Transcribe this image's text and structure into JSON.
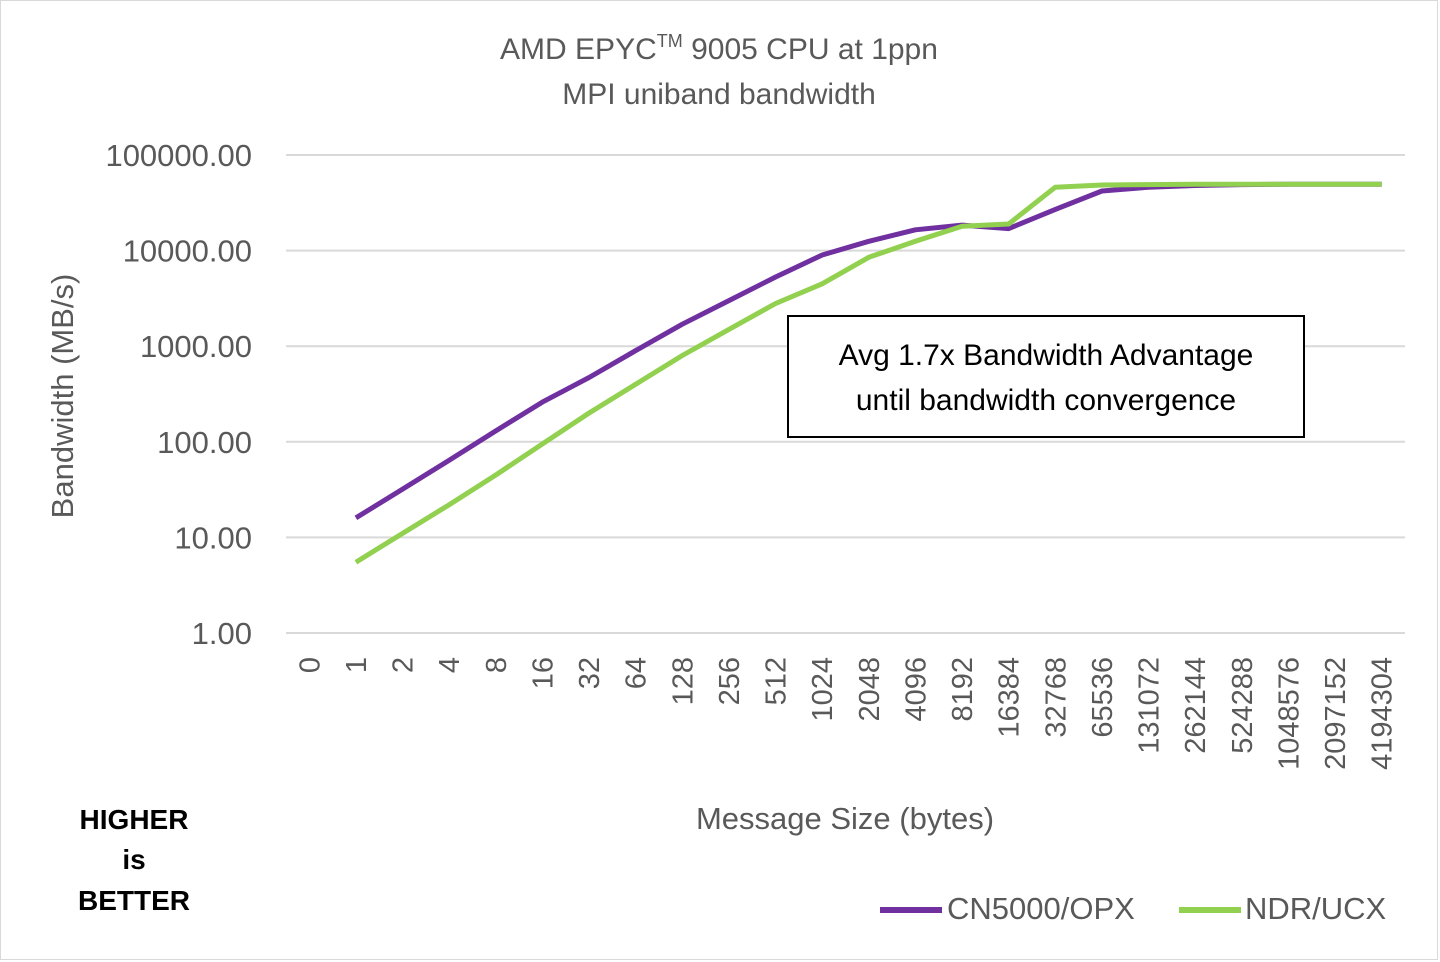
{
  "chart_data": {
    "type": "line",
    "title_main": "AMD EPYC",
    "title_sup": "TM",
    "title_rest": " 9005 CPU at 1ppn",
    "subtitle": "MPI uniband bandwidth",
    "xlabel": "Message Size (bytes)",
    "ylabel": "Bandwidth (MB/s)",
    "y_scale": "log",
    "ylim": [
      1,
      100000
    ],
    "y_ticks": [
      "100000.00",
      "10000.00",
      "1000.00",
      "100.00",
      "10.00",
      "1.00"
    ],
    "categories": [
      "0",
      "1",
      "2",
      "4",
      "8",
      "16",
      "32",
      "64",
      "128",
      "256",
      "512",
      "1024",
      "2048",
      "4096",
      "8192",
      "16384",
      "32768",
      "65536",
      "131072",
      "262144",
      "524288",
      "1048576",
      "2097152",
      "4194304"
    ],
    "series": [
      {
        "name": "CN5000/OPX",
        "color": "#7030a0",
        "values": [
          null,
          16,
          32,
          64,
          130,
          260,
          470,
          900,
          1700,
          3000,
          5300,
          9000,
          12500,
          16500,
          18500,
          17000,
          27000,
          42000,
          46000,
          48000,
          49000,
          49500,
          49500,
          49500
        ]
      },
      {
        "name": "NDR/UCX",
        "color": "#92d050",
        "values": [
          null,
          5.5,
          11,
          22,
          45,
          95,
          200,
          400,
          800,
          1500,
          2800,
          4500,
          8500,
          12500,
          18000,
          19000,
          46000,
          48500,
          49000,
          49500,
          49500,
          49500,
          49500,
          49500
        ]
      }
    ],
    "annotation": {
      "line1": "Avg 1.7x Bandwidth Advantage",
      "line2": "until bandwidth convergence"
    },
    "grid": true,
    "legend_position": "bottom-right"
  },
  "side_note": {
    "line1": "HIGHER",
    "line2": "is",
    "line3": "BETTER"
  }
}
